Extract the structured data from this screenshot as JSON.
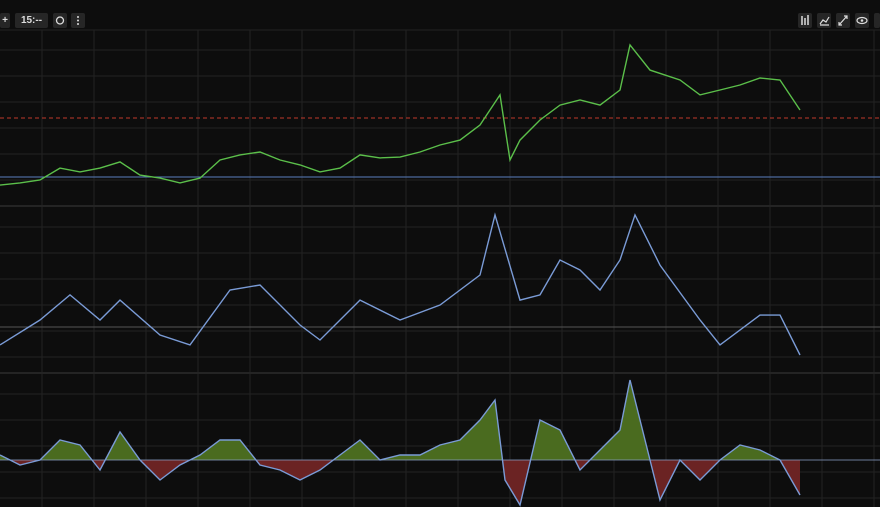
{
  "toolbar": {
    "add": "+",
    "interval": "15:--"
  },
  "chart_data": [
    {
      "type": "line",
      "color": "#5bbf4a",
      "grid": true,
      "xlim": [
        0,
        880
      ],
      "ylim": [
        0,
        100
      ],
      "x": [
        0,
        20,
        40,
        60,
        80,
        100,
        120,
        140,
        160,
        180,
        200,
        220,
        240,
        260,
        280,
        300,
        320,
        340,
        360,
        380,
        400,
        420,
        440,
        460,
        480,
        500,
        510,
        520,
        540,
        560,
        580,
        600,
        620,
        630,
        650,
        680,
        700,
        720,
        740,
        760,
        780,
        800
      ],
      "values": [
        11.4,
        12.6,
        14.3,
        21.1,
        18.9,
        21.1,
        24.6,
        17.1,
        15.4,
        12.6,
        15.4,
        25.7,
        28.6,
        30.3,
        25.7,
        22.9,
        18.9,
        21.1,
        28.6,
        26.9,
        27.4,
        30.3,
        34.3,
        37.1,
        45.7,
        62.9,
        25.7,
        37.1,
        48.6,
        57.1,
        60,
        57.1,
        65.7,
        91.4,
        77.1,
        71.4,
        62.9,
        65.7,
        68.6,
        72.6,
        71.4,
        54.3
      ],
      "hlines": [
        {
          "value": 49.7,
          "color": "#c0392b",
          "dashed": true
        },
        {
          "value": 16,
          "color": "#5b7fbf",
          "dashed": false
        }
      ]
    },
    {
      "type": "line",
      "color": "#7a9bd6",
      "grid": true,
      "xlim": [
        0,
        880
      ],
      "ylim": [
        0,
        100
      ],
      "x": [
        0,
        40,
        70,
        100,
        120,
        160,
        190,
        230,
        260,
        300,
        320,
        360,
        400,
        440,
        480,
        495,
        520,
        540,
        560,
        580,
        600,
        620,
        635,
        660,
        700,
        720,
        760,
        780,
        800
      ],
      "values": [
        16.4,
        31.5,
        46.7,
        31.5,
        43.6,
        22.4,
        16.4,
        49.7,
        52.7,
        28.5,
        19.4,
        43.6,
        31.5,
        40.6,
        58.8,
        95.2,
        43.6,
        46.7,
        67.9,
        61.8,
        49.7,
        67.9,
        95.2,
        64.8,
        31.5,
        16.4,
        34.5,
        34.5,
        10.3
      ],
      "hlines": [
        {
          "value": 27.3,
          "color": "#555",
          "dashed": false
        }
      ]
    },
    {
      "type": "area",
      "color": "#7a9bd6",
      "up_color": "#4a6b1f",
      "down_color": "#6b2323",
      "grid": true,
      "xlim": [
        0,
        880
      ],
      "ylim": [
        -47,
        86
      ],
      "x": [
        0,
        20,
        40,
        60,
        80,
        100,
        120,
        140,
        160,
        180,
        200,
        220,
        240,
        260,
        280,
        300,
        320,
        340,
        360,
        380,
        400,
        420,
        440,
        460,
        480,
        495,
        505,
        520,
        540,
        560,
        580,
        600,
        620,
        630,
        650,
        660,
        680,
        700,
        720,
        740,
        760,
        780,
        800
      ],
      "values": [
        5,
        -5,
        0,
        20,
        15,
        -10,
        28,
        0,
        -20,
        -5,
        5,
        20,
        20,
        -5,
        -10,
        -20,
        -10,
        5,
        20,
        0,
        5,
        5,
        15,
        20,
        40,
        60,
        -20,
        -45,
        40,
        30,
        -10,
        10,
        30,
        80,
        0,
        -40,
        0,
        -20,
        0,
        15,
        10,
        0,
        -35
      ]
    }
  ]
}
